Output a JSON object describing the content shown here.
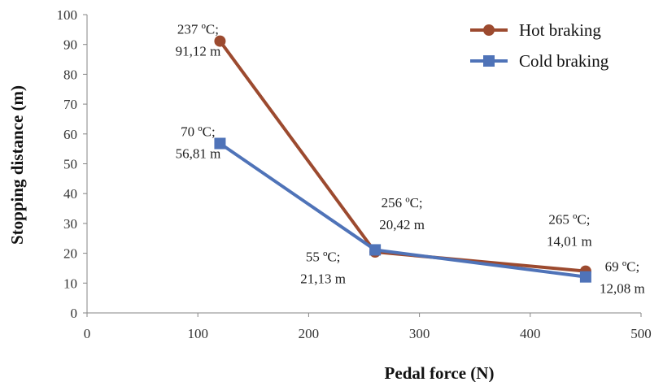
{
  "chart_data": {
    "type": "line",
    "xlabel": "Pedal force (N)",
    "ylabel": "Stopping distance (m)",
    "xlim": [
      0,
      500
    ],
    "ylim": [
      0,
      100
    ],
    "x_ticks": [
      "0",
      "100",
      "200",
      "300",
      "400",
      "500"
    ],
    "y_ticks": [
      "0",
      "10",
      "20",
      "30",
      "40",
      "50",
      "60",
      "70",
      "80",
      "90",
      "100"
    ],
    "grid": false,
    "legend_position": "top-right",
    "series": [
      {
        "name": "Hot braking",
        "color": "#9c4a2f",
        "marker": "circle",
        "x": [
          120,
          260,
          450
        ],
        "y": [
          91.12,
          20.42,
          14.01
        ],
        "labels": [
          [
            "237 ºC;",
            "91,12 m"
          ],
          [
            "256 ºC;",
            "20,42 m"
          ],
          [
            "265 ºC;",
            "14,01 m"
          ]
        ]
      },
      {
        "name": "Cold braking",
        "color": "#4f73b8",
        "marker": "square",
        "x": [
          120,
          260,
          450
        ],
        "y": [
          56.81,
          21.13,
          12.08
        ],
        "labels": [
          [
            "70 ºC;",
            "56,81 m"
          ],
          [
            "55 ºC;",
            "21,13 m"
          ],
          [
            "69 ºC;",
            "12,08 m"
          ]
        ]
      }
    ]
  }
}
